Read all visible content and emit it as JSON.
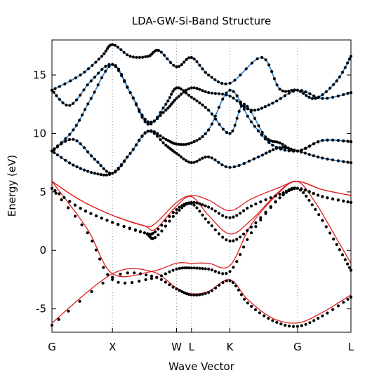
{
  "chart_data": {
    "type": "line",
    "title": "LDA-GW-Si-Band Structure",
    "xlabel": "Wave Vector",
    "ylabel": "Energy (eV)",
    "xlim": [
      0,
      4.2
    ],
    "ylim": [
      -7,
      18
    ],
    "y_ticks": [
      -5,
      0,
      5,
      10,
      15
    ],
    "k_points": [
      {
        "label": "G",
        "x": 0.0
      },
      {
        "label": "X",
        "x": 0.85
      },
      {
        "label": "W",
        "x": 1.75
      },
      {
        "label": "L",
        "x": 1.96
      },
      {
        "label": "K",
        "x": 2.5
      },
      {
        "label": "G",
        "x": 3.45
      },
      {
        "label": "L",
        "x": 4.2
      }
    ],
    "series": [
      {
        "kind": "gw_points",
        "color": "#000000",
        "bands": [
          [
            [
              0,
              -6.4
            ],
            [
              0.85,
              -2.3
            ],
            [
              1.4,
              -2.2
            ],
            [
              1.75,
              -3.3
            ],
            [
              1.96,
              -3.8
            ],
            [
              2.2,
              -3.6
            ],
            [
              2.5,
              -2.6
            ],
            [
              2.75,
              -4.5
            ],
            [
              3.1,
              -6.0
            ],
            [
              3.45,
              -6.5
            ],
            [
              3.8,
              -5.6
            ],
            [
              4.2,
              -4.0
            ]
          ],
          [
            [
              0,
              5.3
            ],
            [
              0.5,
              1.5
            ],
            [
              0.85,
              -2.5
            ],
            [
              1.4,
              -2.4
            ],
            [
              1.75,
              -1.6
            ],
            [
              1.96,
              -1.5
            ],
            [
              2.2,
              -1.6
            ],
            [
              2.5,
              -1.8
            ],
            [
              2.8,
              1.5
            ],
            [
              3.2,
              4.5
            ],
            [
              3.45,
              5.3
            ],
            [
              3.7,
              3.5
            ],
            [
              4.0,
              0.5
            ],
            [
              4.2,
              -1.7
            ]
          ],
          [
            [
              0,
              5.3
            ],
            [
              0.4,
              3.6
            ],
            [
              0.85,
              2.4
            ],
            [
              1.3,
              1.5
            ],
            [
              1.45,
              1.1
            ],
            [
              1.75,
              3.2
            ],
            [
              1.96,
              4.0
            ],
            [
              2.2,
              2.4
            ],
            [
              2.5,
              0.8
            ],
            [
              2.8,
              2.0
            ],
            [
              3.2,
              4.5
            ],
            [
              3.45,
              5.3
            ],
            [
              3.8,
              4.6
            ],
            [
              4.2,
              4.1
            ]
          ],
          [
            [
              0,
              5.3
            ],
            [
              0.4,
              3.6
            ],
            [
              0.85,
              2.4
            ],
            [
              1.3,
              1.5
            ],
            [
              1.45,
              1.6
            ],
            [
              1.75,
              3.5
            ],
            [
              1.96,
              4.1
            ],
            [
              2.2,
              3.7
            ],
            [
              2.5,
              2.8
            ],
            [
              2.8,
              3.8
            ],
            [
              3.2,
              4.8
            ],
            [
              3.45,
              5.3
            ],
            [
              3.8,
              4.6
            ],
            [
              4.2,
              4.1
            ]
          ],
          [
            [
              0,
              8.5
            ],
            [
              0.3,
              7.3
            ],
            [
              0.6,
              6.6
            ],
            [
              0.85,
              6.6
            ],
            [
              1.1,
              8.3
            ],
            [
              1.35,
              10.2
            ],
            [
              1.6,
              9.0
            ],
            [
              1.75,
              8.3
            ],
            [
              1.96,
              7.5
            ],
            [
              2.2,
              8.0
            ],
            [
              2.5,
              7.1
            ],
            [
              2.9,
              8.0
            ],
            [
              3.2,
              8.8
            ],
            [
              3.45,
              8.5
            ],
            [
              3.8,
              7.9
            ],
            [
              4.2,
              7.5
            ]
          ],
          [
            [
              0,
              8.5
            ],
            [
              0.3,
              9.5
            ],
            [
              0.6,
              7.8
            ],
            [
              0.85,
              6.6
            ],
            [
              1.1,
              8.3
            ],
            [
              1.35,
              10.2
            ],
            [
              1.6,
              9.5
            ],
            [
              1.75,
              9.1
            ],
            [
              1.96,
              9.2
            ],
            [
              2.2,
              10.3
            ],
            [
              2.5,
              13.7
            ],
            [
              2.8,
              11.0
            ],
            [
              3.1,
              9.0
            ],
            [
              3.45,
              8.5
            ],
            [
              3.8,
              9.4
            ],
            [
              4.2,
              9.3
            ]
          ],
          [
            [
              0,
              8.5
            ],
            [
              0.3,
              10.3
            ],
            [
              0.55,
              13.0
            ],
            [
              0.85,
              15.9
            ],
            [
              1.1,
              13.5
            ],
            [
              1.35,
              10.8
            ],
            [
              1.6,
              12.5
            ],
            [
              1.75,
              13.9
            ],
            [
              1.96,
              13.1
            ],
            [
              2.2,
              12.0
            ],
            [
              2.5,
              10.0
            ],
            [
              2.7,
              12.5
            ],
            [
              3.0,
              9.7
            ],
            [
              3.2,
              9.2
            ],
            [
              3.45,
              8.5
            ],
            [
              3.8,
              9.4
            ],
            [
              4.2,
              9.3
            ]
          ],
          [
            [
              0,
              13.7
            ],
            [
              0.25,
              12.4
            ],
            [
              0.55,
              14.5
            ],
            [
              0.85,
              15.9
            ],
            [
              1.1,
              13.5
            ],
            [
              1.35,
              11.0
            ],
            [
              1.6,
              12.0
            ],
            [
              1.75,
              13.0
            ],
            [
              1.96,
              13.9
            ],
            [
              2.2,
              13.5
            ],
            [
              2.5,
              13.2
            ],
            [
              2.8,
              12.0
            ],
            [
              3.1,
              12.6
            ],
            [
              3.45,
              13.7
            ],
            [
              3.8,
              13.0
            ],
            [
              4.2,
              13.5
            ]
          ],
          [
            [
              0,
              13.7
            ],
            [
              0.4,
              15.0
            ],
            [
              0.7,
              16.6
            ],
            [
              0.85,
              17.6
            ],
            [
              1.1,
              16.6
            ],
            [
              1.35,
              16.6
            ],
            [
              1.5,
              17.1
            ],
            [
              1.75,
              15.7
            ],
            [
              1.96,
              16.5
            ],
            [
              2.2,
              15.0
            ],
            [
              2.5,
              14.3
            ],
            [
              2.95,
              16.5
            ],
            [
              3.2,
              13.8
            ],
            [
              3.45,
              13.7
            ],
            [
              3.7,
              13.0
            ],
            [
              4.0,
              14.5
            ],
            [
              4.2,
              16.6
            ]
          ]
        ]
      },
      {
        "kind": "lda_red",
        "color": "#e02020",
        "bands": [
          [
            [
              0,
              -6.2
            ],
            [
              0.85,
              -2.0
            ],
            [
              1.4,
              -1.8
            ],
            [
              1.75,
              -3.2
            ],
            [
              1.96,
              -3.7
            ],
            [
              2.2,
              -3.5
            ],
            [
              2.5,
              -2.5
            ],
            [
              2.75,
              -4.2
            ],
            [
              3.1,
              -5.8
            ],
            [
              3.45,
              -6.2
            ],
            [
              3.8,
              -5.3
            ],
            [
              4.2,
              -3.8
            ]
          ],
          [
            [
              0,
              5.9
            ],
            [
              0.5,
              1.8
            ],
            [
              0.85,
              -2.0
            ],
            [
              1.4,
              -1.8
            ],
            [
              1.75,
              -1.1
            ],
            [
              1.96,
              -1.1
            ],
            [
              2.2,
              -1.1
            ],
            [
              2.5,
              -1.3
            ],
            [
              2.8,
              2.2
            ],
            [
              3.2,
              5.0
            ],
            [
              3.45,
              5.9
            ],
            [
              3.7,
              4.1
            ],
            [
              4.0,
              1.0
            ],
            [
              4.2,
              -1.1
            ]
          ],
          [
            [
              0,
              5.9
            ],
            [
              0.4,
              4.3
            ],
            [
              0.85,
              3.0
            ],
            [
              1.3,
              2.1
            ],
            [
              1.45,
              1.8
            ],
            [
              1.75,
              3.8
            ],
            [
              1.96,
              4.6
            ],
            [
              2.2,
              3.0
            ],
            [
              2.5,
              1.4
            ],
            [
              2.8,
              2.6
            ],
            [
              3.2,
              5.1
            ],
            [
              3.45,
              5.9
            ],
            [
              3.8,
              5.2
            ],
            [
              4.2,
              4.7
            ]
          ],
          [
            [
              0,
              5.9
            ],
            [
              0.4,
              4.3
            ],
            [
              0.85,
              3.0
            ],
            [
              1.3,
              2.1
            ],
            [
              1.45,
              2.3
            ],
            [
              1.75,
              4.1
            ],
            [
              1.96,
              4.7
            ],
            [
              2.2,
              4.3
            ],
            [
              2.5,
              3.4
            ],
            [
              2.8,
              4.4
            ],
            [
              3.2,
              5.4
            ],
            [
              3.45,
              5.9
            ],
            [
              3.8,
              5.2
            ],
            [
              4.2,
              4.7
            ]
          ]
        ]
      },
      {
        "kind": "lda_blue",
        "color": "#2a7fd0",
        "bands": [
          [
            [
              0,
              8.5
            ],
            [
              0.3,
              7.3
            ],
            [
              0.6,
              6.6
            ],
            [
              0.85,
              6.6
            ],
            [
              1.1,
              8.3
            ],
            [
              1.35,
              10.2
            ],
            [
              1.6,
              9.0
            ],
            [
              1.75,
              8.3
            ],
            [
              1.96,
              7.5
            ],
            [
              2.2,
              8.0
            ],
            [
              2.5,
              7.1
            ],
            [
              2.9,
              8.0
            ],
            [
              3.2,
              8.8
            ],
            [
              3.45,
              8.5
            ],
            [
              3.8,
              7.9
            ],
            [
              4.2,
              7.5
            ]
          ],
          [
            [
              0,
              8.5
            ],
            [
              0.3,
              9.5
            ],
            [
              0.6,
              7.8
            ],
            [
              0.85,
              6.6
            ],
            [
              1.1,
              8.3
            ],
            [
              1.35,
              10.2
            ],
            [
              1.6,
              9.5
            ],
            [
              1.75,
              9.1
            ],
            [
              1.96,
              9.2
            ],
            [
              2.2,
              10.3
            ],
            [
              2.5,
              13.7
            ],
            [
              2.8,
              11.0
            ],
            [
              3.1,
              9.0
            ],
            [
              3.45,
              8.5
            ],
            [
              3.8,
              9.4
            ],
            [
              4.2,
              9.3
            ]
          ],
          [
            [
              0,
              8.5
            ],
            [
              0.3,
              10.3
            ],
            [
              0.55,
              13.0
            ],
            [
              0.85,
              15.9
            ],
            [
              1.1,
              13.5
            ],
            [
              1.35,
              10.8
            ],
            [
              1.6,
              12.5
            ],
            [
              1.75,
              13.9
            ],
            [
              1.96,
              13.1
            ],
            [
              2.2,
              12.0
            ],
            [
              2.5,
              10.0
            ],
            [
              2.7,
              12.5
            ],
            [
              3.0,
              9.7
            ],
            [
              3.2,
              9.2
            ],
            [
              3.45,
              8.5
            ],
            [
              3.8,
              9.4
            ],
            [
              4.2,
              9.3
            ]
          ],
          [
            [
              0,
              13.7
            ],
            [
              0.25,
              12.4
            ],
            [
              0.55,
              14.5
            ],
            [
              0.85,
              15.9
            ],
            [
              1.1,
              13.5
            ],
            [
              1.35,
              11.0
            ],
            [
              1.6,
              12.0
            ],
            [
              1.75,
              13.0
            ],
            [
              1.96,
              13.9
            ],
            [
              2.2,
              13.5
            ],
            [
              2.5,
              13.2
            ],
            [
              2.8,
              12.0
            ],
            [
              3.1,
              12.6
            ],
            [
              3.45,
              13.7
            ],
            [
              3.8,
              13.0
            ],
            [
              4.2,
              13.5
            ]
          ],
          [
            [
              0,
              13.7
            ],
            [
              0.4,
              15.0
            ],
            [
              0.7,
              16.6
            ],
            [
              0.85,
              17.6
            ],
            [
              1.1,
              16.6
            ],
            [
              1.35,
              16.6
            ],
            [
              1.5,
              17.1
            ],
            [
              1.75,
              15.7
            ],
            [
              1.96,
              16.5
            ],
            [
              2.2,
              15.0
            ],
            [
              2.5,
              14.3
            ],
            [
              2.95,
              16.5
            ],
            [
              3.2,
              13.8
            ],
            [
              3.45,
              13.7
            ],
            [
              3.7,
              13.0
            ],
            [
              4.0,
              14.5
            ],
            [
              4.2,
              16.6
            ]
          ]
        ]
      }
    ],
    "grid": "vertical dotted lines at k-points",
    "legend": "none"
  }
}
